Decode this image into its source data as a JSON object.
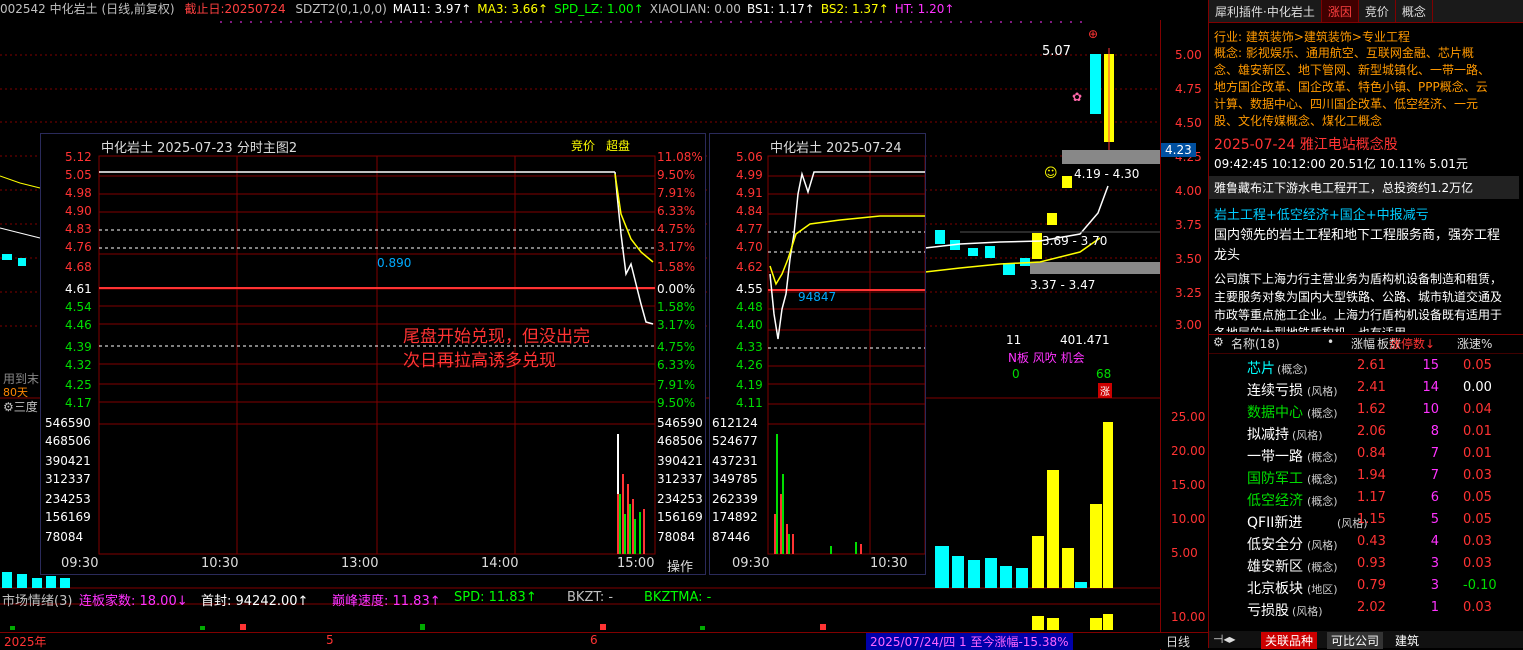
{
  "header": {
    "code_name": "002542 中化岩土 (日线,前复权)",
    "deadline": "截止日:20250724",
    "indicators": [
      {
        "label": "SDZT2(0,1,0,0)",
        "color": "#c0c0c0"
      },
      {
        "label": "MA11: 3.97↑",
        "color": "#ffffff"
      },
      {
        "label": "MA3: 3.66↑",
        "color": "#ffff00"
      },
      {
        "label": "SPD_LZ: 1.00↑",
        "color": "#00ff00"
      },
      {
        "label": "XIAOLIAN: 0.00",
        "color": "#c0c0c0"
      },
      {
        "label": "BS1: 1.17↑",
        "color": "#ffffff"
      },
      {
        "label": "BS2: 1.37↑",
        "color": "#ffff00"
      },
      {
        "label": "HT: 1.20↑",
        "color": "#ff33ff"
      }
    ]
  },
  "main_chart": {
    "price_axis": [
      "5.00",
      "4.75",
      "4.50",
      "4.25",
      "4.00",
      "3.75",
      "3.50",
      "3.25",
      "3.00"
    ],
    "last_price": "4.23",
    "annotations": {
      "high": "5.07",
      "range1": "4.19 - 4.30",
      "range2": "3.69 - 3.70",
      "range3": "3.37 - 3.47"
    },
    "left_notes": [
      "用到末",
      "80天",
      "三度"
    ],
    "stats": {
      "a": "11",
      "b": "401.471",
      "label": "N板 风吹 机会",
      "c": "0",
      "d": "68",
      "zhang": "涨"
    },
    "vol_axis": [
      "25.00",
      "20.00",
      "15.00",
      "10.00",
      "5.00"
    ],
    "bottom_axis": [
      "10.00"
    ]
  },
  "popup1": {
    "title": "中化岩土  2025-07-23 分时主图2",
    "tags": [
      "竞价",
      "超盘"
    ],
    "left_prices": [
      "5.12",
      "5.05",
      "4.98",
      "4.90",
      "4.83",
      "4.76",
      "4.68",
      "4.61",
      "4.54",
      "4.46",
      "4.39",
      "4.32",
      "4.25",
      "4.17"
    ],
    "right_pcts": [
      "11.08%",
      "9.50%",
      "7.91%",
      "6.33%",
      "4.75%",
      "3.17%",
      "1.58%",
      "0.00%",
      "1.58%",
      "3.17%",
      "4.75%",
      "6.33%",
      "7.91%",
      "9.50%"
    ],
    "vols": [
      "546590",
      "468506",
      "390421",
      "312337",
      "234253",
      "156169",
      "78084"
    ],
    "times": [
      "09:30",
      "10:30",
      "13:00",
      "14:00",
      "15:00"
    ],
    "ratio": "0.890",
    "note_line1": "尾盘开始兑现，但没出完",
    "note_line2": "次日再拉高诱多兑现",
    "op": "操作"
  },
  "popup2": {
    "title": "中化岩土   2025-07-24",
    "left_prices": [
      "5.06",
      "4.99",
      "4.91",
      "4.84",
      "4.77",
      "4.70",
      "4.62",
      "4.55",
      "4.48",
      "4.40",
      "4.33",
      "4.26",
      "4.19",
      "4.11"
    ],
    "vols": [
      "612124",
      "524677",
      "437231",
      "349785",
      "262339",
      "174892",
      "87446"
    ],
    "times": [
      "09:30",
      "10:30"
    ],
    "vol_label": "94847"
  },
  "bottombar": {
    "items": [
      {
        "label": "市场情绪(3)",
        "color": "#c0c0c0"
      },
      {
        "label": "连板家数: 18.00↓",
        "color": "#ff33ff"
      },
      {
        "label": "首封: 94242.00↑",
        "color": "#ffffff"
      },
      {
        "label": "巅峰速度: 11.83↑",
        "color": "#ff33ff"
      },
      {
        "label": "SPD: 11.83↑",
        "color": "#00ff00"
      },
      {
        "label": "BKZT: -",
        "color": "#c0c0c0"
      },
      {
        "label": "BKZTMA: -",
        "color": "#00ff00"
      }
    ]
  },
  "datebar": {
    "year": "2025年",
    "m5": "5",
    "m6": "6",
    "range": "2025/07/24/四 1 至今涨幅-15.38%",
    "period": "日线"
  },
  "right_panel": {
    "tabs": [
      "犀利插件·中化岩土",
      "涨因",
      "竞价",
      "概念"
    ],
    "industry": "行业: 建筑装饰>建筑装饰>专业工程",
    "concepts": "概念: 影视娱乐、通用航空、互联网金融、芯片概念、雄安新区、地下管网、新型城镇化、一带一路、地方国企改革、国企改革、特色小镇、PPP概念、云计算、数据中心、四川国企改革、低空经济、一元股、文化传媒概念、煤化工概念",
    "date_title": "2025-07-24  雅江电站概念股",
    "quote": "09:42:45 10:12:00  20.51亿  10.11%  5.01元",
    "news": "雅鲁藏布江下游水电工程开工，总投资约1.2万亿",
    "tags": "岩土工程+低空经济+国企+中报减亏",
    "summary": "国内领先的岩土工程和地下工程服务商，强夯工程龙头",
    "desc": "公司旗下上海力行主营业务为盾构机设备制造和租赁，主要服务对象为国内大型铁路、公路、城市轨道交通及市政等重点施工企业。上海力行盾构机设备既有适用于各地层的大型地铁盾构机，也有适用...",
    "table_header": [
      "名称(18)",
      "•",
      "涨幅",
      "板数",
      "涨停数↓",
      "涨速%"
    ],
    "rows": [
      {
        "name": "芯片",
        "tag": "(概念)",
        "pct": "2.61",
        "cnt": "15",
        "spd": "0.05",
        "ncolor": "#00ffff",
        "ccolor": "#ff33ff"
      },
      {
        "name": "连续亏损",
        "tag": "(风格)",
        "pct": "2.41",
        "cnt": "14",
        "spd": "0.00",
        "ncolor": "#ffffff",
        "ccolor": "#ff33ff"
      },
      {
        "name": "数据中心",
        "tag": "(概念)",
        "pct": "1.62",
        "cnt": "10",
        "spd": "0.04",
        "ncolor": "#00dd00",
        "ccolor": "#ff33ff"
      },
      {
        "name": "拟减持",
        "tag": "(风格)",
        "pct": "2.06",
        "cnt": "8",
        "spd": "0.01",
        "ncolor": "#ffffff",
        "ccolor": "#ff33ff"
      },
      {
        "name": "一带一路",
        "tag": "(概念)",
        "pct": "0.84",
        "cnt": "7",
        "spd": "0.01",
        "ncolor": "#ffffff",
        "ccolor": "#ff33ff"
      },
      {
        "name": "国防军工",
        "tag": "(概念)",
        "pct": "1.94",
        "cnt": "7",
        "spd": "0.03",
        "ncolor": "#00dd00",
        "ccolor": "#ff33ff"
      },
      {
        "name": "低空经济",
        "tag": "(概念)",
        "pct": "1.17",
        "cnt": "6",
        "spd": "0.05",
        "ncolor": "#00dd00",
        "ccolor": "#ff33ff"
      },
      {
        "name": "QFII新进",
        "tag": "(风格)",
        "pct": "1.15",
        "cnt": "5",
        "spd": "0.05",
        "ncolor": "#ffffff",
        "ccolor": "#ff33ff"
      },
      {
        "name": "低安全分",
        "tag": "(风格)",
        "pct": "0.43",
        "cnt": "4",
        "spd": "0.03",
        "ncolor": "#ffffff",
        "ccolor": "#ff33ff"
      },
      {
        "name": "雄安新区",
        "tag": "(概念)",
        "pct": "0.93",
        "cnt": "3",
        "spd": "0.03",
        "ncolor": "#ffffff",
        "ccolor": "#ff33ff"
      },
      {
        "name": "北京板块",
        "tag": "(地区)",
        "pct": "0.79",
        "cnt": "3",
        "spd": "-0.10",
        "ncolor": "#ffffff",
        "ccolor": "#ff33ff"
      },
      {
        "name": "亏损股",
        "tag": "(风格)",
        "pct": "2.02",
        "cnt": "1",
        "spd": "0.03",
        "ncolor": "#ffffff",
        "ccolor": "#ff33ff"
      }
    ],
    "footer": [
      "关联品种",
      "可比公司",
      "建筑"
    ]
  }
}
